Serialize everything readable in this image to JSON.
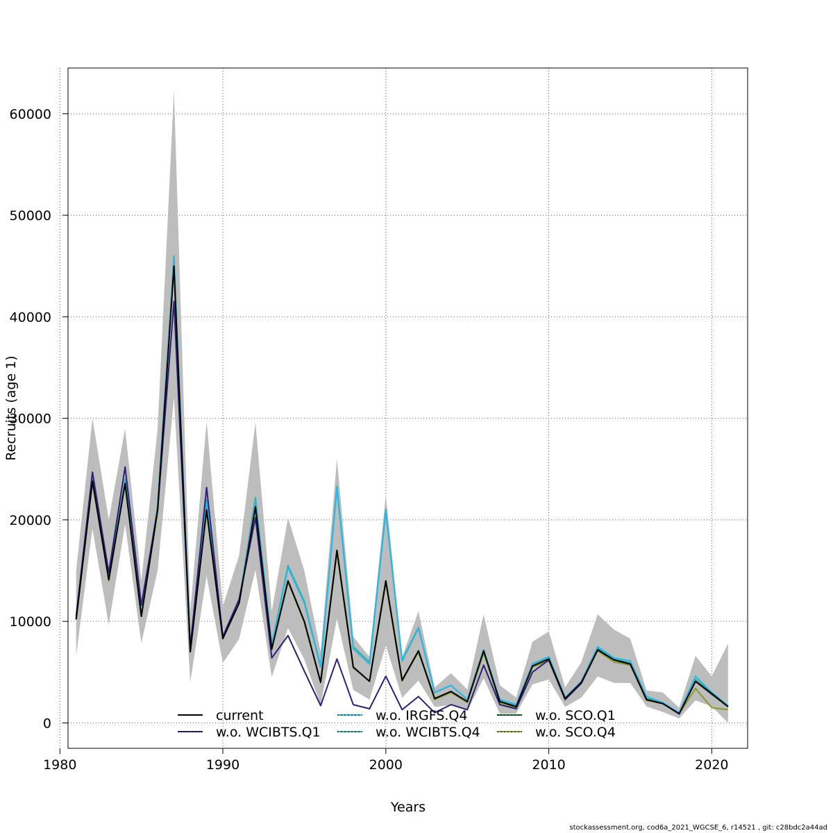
{
  "chart_data": {
    "type": "line",
    "title": "",
    "xlabel": "Years",
    "ylabel": "Recruits (age 1)",
    "xlim": [
      1980.5,
      2022.2
    ],
    "ylim": [
      -2500,
      64500
    ],
    "xticks": [
      1980,
      1990,
      2000,
      2010,
      2020
    ],
    "yticks": [
      0,
      10000,
      20000,
      30000,
      40000,
      50000,
      60000
    ],
    "grid": true,
    "legend_position": "bottom",
    "x": [
      1981,
      1982,
      1983,
      1984,
      1985,
      1986,
      1987,
      1988,
      1989,
      1990,
      1991,
      1992,
      1993,
      1994,
      1995,
      1996,
      1997,
      1998,
      1999,
      2000,
      2001,
      2002,
      2003,
      2004,
      2005,
      2006,
      2007,
      2008,
      2009,
      2010,
      2011,
      2012,
      2013,
      2014,
      2015,
      2016,
      2017,
      2018,
      2019,
      2020,
      2021
    ],
    "confidence_band": {
      "upper": [
        15000,
        30000,
        20000,
        29000,
        14000,
        29000,
        62300,
        11000,
        29700,
        11500,
        16500,
        29600,
        11000,
        20200,
        15000,
        7000,
        26000,
        8500,
        6500,
        22500,
        6500,
        11000,
        3500,
        4900,
        3300,
        10700,
        3700,
        2500,
        8000,
        9000,
        3500,
        6000,
        10700,
        9200,
        8300,
        3200,
        3000,
        1500,
        6600,
        4600,
        7800
      ]
    },
    "series": [
      {
        "name": "current",
        "color": "#000000",
        "values": [
          10200,
          23800,
          14100,
          23600,
          10500,
          21000,
          45000,
          7000,
          21000,
          8300,
          11800,
          21300,
          7300,
          14000,
          10000,
          4000,
          17000,
          5500,
          4100,
          14000,
          4200,
          7100,
          2400,
          3100,
          2100,
          7100,
          2100,
          1600,
          5600,
          6300,
          2400,
          4000,
          7200,
          6200,
          5800,
          2300,
          1900,
          900,
          4100,
          2900,
          1600
        ]
      },
      {
        "name": "w.o. WCIBTS.Q1",
        "color": "#2d1e78",
        "values": [
          10500,
          24700,
          14800,
          25200,
          11600,
          21000,
          41500,
          7500,
          23200,
          8500,
          12200,
          20200,
          6400,
          8600,
          5100,
          1700,
          6300,
          1800,
          1400,
          4600,
          1300,
          2600,
          1000,
          1800,
          1300,
          5700,
          1800,
          1400,
          5000,
          6200,
          2300,
          3900,
          7200,
          6200,
          5800,
          2300,
          1900,
          900,
          4100,
          2900,
          1600
        ]
      },
      {
        "name": "w.o. IRGFS.Q4",
        "color": "#29b6e8",
        "values": [
          10300,
          24000,
          14200,
          23800,
          10600,
          21300,
          45700,
          7200,
          21800,
          8400,
          12000,
          21800,
          7600,
          15300,
          11800,
          5500,
          23100,
          7300,
          5800,
          20800,
          6100,
          9300,
          3000,
          3700,
          2300,
          7200,
          2300,
          1800,
          5800,
          6500,
          2500,
          4100,
          7500,
          6400,
          6100,
          2600,
          2000,
          1000,
          4600,
          3000,
          1700
        ]
      },
      {
        "name": "w.o. WCIBTS.Q4",
        "color": "#3aaea0",
        "values": [
          10300,
          24100,
          14300,
          24000,
          10700,
          21500,
          46000,
          7300,
          22000,
          8400,
          12000,
          22200,
          7700,
          15500,
          12000,
          5600,
          23300,
          7500,
          6000,
          21000,
          6200,
          9400,
          3000,
          3700,
          2300,
          7200,
          2200,
          1700,
          5700,
          6400,
          2400,
          4100,
          7400,
          6300,
          5900,
          2400,
          1950,
          950,
          4300,
          2950,
          1650
        ]
      },
      {
        "name": "w.o. SCO.Q1",
        "color": "#0a6e2e",
        "values": [
          10200,
          23800,
          14100,
          23600,
          10500,
          21000,
          45000,
          7000,
          21000,
          8300,
          11800,
          21300,
          7300,
          14000,
          10000,
          4000,
          17000,
          5500,
          4100,
          14000,
          4200,
          7100,
          2400,
          3100,
          2100,
          7100,
          2100,
          1600,
          5800,
          6500,
          2400,
          4000,
          7300,
          6300,
          5900,
          2400,
          1950,
          900,
          4100,
          2800,
          1600
        ]
      },
      {
        "name": "w.o. SCO.Q4",
        "color": "#8a9a28",
        "values": [
          10200,
          23800,
          14000,
          23500,
          10500,
          20800,
          45500,
          7000,
          20800,
          8300,
          11800,
          21000,
          7200,
          13900,
          9900,
          4000,
          16800,
          5400,
          4100,
          13800,
          4100,
          7000,
          2300,
          3000,
          2000,
          6900,
          2000,
          1500,
          5500,
          6100,
          2300,
          3900,
          7100,
          6000,
          5700,
          2200,
          1900,
          900,
          3400,
          1500,
          1300
        ]
      }
    ]
  },
  "footer_text": "stockassessment.org, cod6a_2021_WGCSE_6, r14521 , git: c28bdc2a44ad"
}
